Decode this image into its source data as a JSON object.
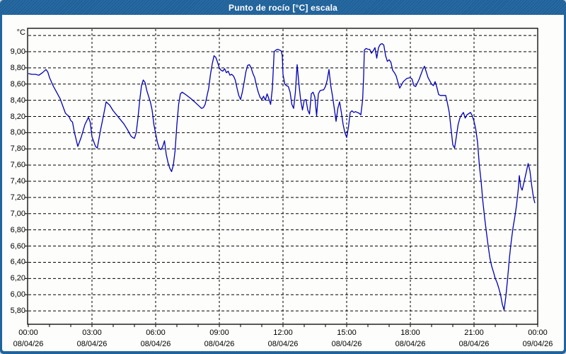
{
  "window": {
    "title": "Punto de rocío [°C] escala",
    "titlebar_color": "#1f649e",
    "border_color": "#1f649e",
    "plot_background": "#fdfdfb"
  },
  "chart_data": {
    "type": "line",
    "title": "Punto de rocío [°C] escala",
    "series_name": "Punto de rocío",
    "unit_label": "°C",
    "line_color": "#0000b8",
    "grid": "dashed-black",
    "legend": "none",
    "y_axis": {
      "tick_labels": [
        "9,00",
        "8,80",
        "8,60",
        "8,40",
        "8,20",
        "8,00",
        "7,80",
        "7,60",
        "7,40",
        "7,20",
        "7,00",
        "6,80",
        "6,60",
        "6,40",
        "6,20",
        "6,00",
        "5,80"
      ],
      "tick_values": [
        9.0,
        8.8,
        8.6,
        8.4,
        8.2,
        8.0,
        7.8,
        7.6,
        7.4,
        7.2,
        7.0,
        6.8,
        6.6,
        6.4,
        6.2,
        6.0,
        5.8
      ],
      "unlabeled_top_gridline": 9.2,
      "gridline_step": 0.2,
      "range_shown": [
        5.64,
        9.29
      ]
    },
    "x_axis": {
      "span_hours": 24,
      "major_tick_every_hours": 3,
      "minor_tick_every_hours": 1,
      "ticks": [
        {
          "time": "00:00",
          "date": "08/04/26"
        },
        {
          "time": "03:00",
          "date": "08/04/26"
        },
        {
          "time": "06:00",
          "date": "08/04/26"
        },
        {
          "time": "09:00",
          "date": "08/04/26"
        },
        {
          "time": "12:00",
          "date": "08/04/26"
        },
        {
          "time": "15:00",
          "date": "08/04/26"
        },
        {
          "time": "18:00",
          "date": "08/04/26"
        },
        {
          "time": "21:00",
          "date": "08/04/26"
        },
        {
          "time": "00:00",
          "date": "09/04/26"
        }
      ]
    },
    "points_format": [
      "minutes_from_00:00",
      "dew_point_C"
    ],
    "points": [
      [
        0,
        8.73
      ],
      [
        10,
        8.72
      ],
      [
        20,
        8.72
      ],
      [
        30,
        8.71
      ],
      [
        40,
        8.74
      ],
      [
        50,
        8.78
      ],
      [
        55,
        8.75
      ],
      [
        60,
        8.68
      ],
      [
        70,
        8.58
      ],
      [
        80,
        8.5
      ],
      [
        90,
        8.42
      ],
      [
        100,
        8.3
      ],
      [
        105,
        8.24
      ],
      [
        110,
        8.22
      ],
      [
        115,
        8.2
      ],
      [
        120,
        8.15
      ],
      [
        125,
        8.13
      ],
      [
        130,
        8.01
      ],
      [
        135,
        7.92
      ],
      [
        140,
        7.83
      ],
      [
        150,
        7.95
      ],
      [
        160,
        8.1
      ],
      [
        170,
        8.19
      ],
      [
        175,
        8.13
      ],
      [
        180,
        7.95
      ],
      [
        190,
        7.83
      ],
      [
        195,
        7.81
      ],
      [
        205,
        8.05
      ],
      [
        212,
        8.2
      ],
      [
        220,
        8.38
      ],
      [
        230,
        8.34
      ],
      [
        240,
        8.27
      ],
      [
        255,
        8.19
      ],
      [
        270,
        8.11
      ],
      [
        280,
        8.04
      ],
      [
        290,
        7.96
      ],
      [
        295,
        7.94
      ],
      [
        300,
        7.93
      ],
      [
        305,
        8.0
      ],
      [
        310,
        8.18
      ],
      [
        315,
        8.4
      ],
      [
        320,
        8.58
      ],
      [
        325,
        8.65
      ],
      [
        330,
        8.62
      ],
      [
        335,
        8.52
      ],
      [
        345,
        8.38
      ],
      [
        350,
        8.28
      ],
      [
        355,
        8.1
      ],
      [
        360,
        7.99
      ],
      [
        365,
        7.88
      ],
      [
        370,
        7.81
      ],
      [
        375,
        7.79
      ],
      [
        380,
        7.83
      ],
      [
        385,
        7.9
      ],
      [
        390,
        7.73
      ],
      [
        395,
        7.63
      ],
      [
        400,
        7.56
      ],
      [
        405,
        7.52
      ],
      [
        410,
        7.6
      ],
      [
        415,
        7.78
      ],
      [
        420,
        8.1
      ],
      [
        425,
        8.35
      ],
      [
        430,
        8.48
      ],
      [
        435,
        8.5
      ],
      [
        445,
        8.47
      ],
      [
        460,
        8.42
      ],
      [
        475,
        8.36
      ],
      [
        485,
        8.32
      ],
      [
        490,
        8.3
      ],
      [
        495,
        8.31
      ],
      [
        500,
        8.35
      ],
      [
        505,
        8.45
      ],
      [
        510,
        8.55
      ],
      [
        515,
        8.72
      ],
      [
        520,
        8.85
      ],
      [
        525,
        8.95
      ],
      [
        530,
        8.93
      ],
      [
        535,
        8.87
      ],
      [
        540,
        8.8
      ],
      [
        545,
        8.77
      ],
      [
        550,
        8.76
      ],
      [
        555,
        8.79
      ],
      [
        560,
        8.74
      ],
      [
        565,
        8.76
      ],
      [
        570,
        8.71
      ],
      [
        575,
        8.72
      ],
      [
        580,
        8.7
      ],
      [
        585,
        8.65
      ],
      [
        590,
        8.55
      ],
      [
        595,
        8.46
      ],
      [
        600,
        8.41
      ],
      [
        605,
        8.5
      ],
      [
        610,
        8.62
      ],
      [
        615,
        8.75
      ],
      [
        620,
        8.83
      ],
      [
        625,
        8.84
      ],
      [
        630,
        8.8
      ],
      [
        635,
        8.73
      ],
      [
        640,
        8.68
      ],
      [
        645,
        8.58
      ],
      [
        650,
        8.5
      ],
      [
        655,
        8.44
      ],
      [
        660,
        8.41
      ],
      [
        665,
        8.45
      ],
      [
        670,
        8.4
      ],
      [
        675,
        8.48
      ],
      [
        680,
        8.42
      ],
      [
        685,
        8.35
      ],
      [
        690,
        8.55
      ],
      [
        695,
        9.0
      ],
      [
        700,
        9.02
      ],
      [
        705,
        9.03
      ],
      [
        710,
        9.02
      ],
      [
        715,
        9.01
      ],
      [
        718,
        8.95
      ],
      [
        720,
        8.72
      ],
      [
        725,
        8.6
      ],
      [
        730,
        8.58
      ],
      [
        735,
        8.57
      ],
      [
        740,
        8.5
      ],
      [
        745,
        8.35
      ],
      [
        750,
        8.3
      ],
      [
        755,
        8.5
      ],
      [
        760,
        8.84
      ],
      [
        765,
        8.6
      ],
      [
        770,
        8.4
      ],
      [
        775,
        8.28
      ],
      [
        780,
        8.4
      ],
      [
        785,
        8.41
      ],
      [
        790,
        8.28
      ],
      [
        795,
        8.23
      ],
      [
        800,
        8.48
      ],
      [
        805,
        8.5
      ],
      [
        810,
        8.44
      ],
      [
        815,
        8.21
      ],
      [
        820,
        8.48
      ],
      [
        825,
        8.52
      ],
      [
        835,
        8.53
      ],
      [
        840,
        8.57
      ],
      [
        845,
        8.65
      ],
      [
        850,
        8.78
      ],
      [
        855,
        8.58
      ],
      [
        860,
        8.45
      ],
      [
        865,
        8.3
      ],
      [
        870,
        8.14
      ],
      [
        875,
        8.3
      ],
      [
        880,
        8.38
      ],
      [
        885,
        8.25
      ],
      [
        890,
        8.1
      ],
      [
        895,
        8.0
      ],
      [
        900,
        7.94
      ],
      [
        905,
        8.07
      ],
      [
        910,
        8.25
      ],
      [
        915,
        8.27
      ],
      [
        920,
        8.25
      ],
      [
        925,
        8.26
      ],
      [
        930,
        8.25
      ],
      [
        935,
        8.24
      ],
      [
        940,
        8.22
      ],
      [
        945,
        8.4
      ],
      [
        948,
        8.7
      ],
      [
        950,
        9.02
      ],
      [
        955,
        9.04
      ],
      [
        960,
        9.03
      ],
      [
        965,
        9.03
      ],
      [
        970,
        8.98
      ],
      [
        975,
        9.01
      ],
      [
        980,
        9.05
      ],
      [
        985,
        8.92
      ],
      [
        990,
        9.05
      ],
      [
        995,
        9.09
      ],
      [
        1000,
        9.1
      ],
      [
        1005,
        9.08
      ],
      [
        1010,
        8.95
      ],
      [
        1015,
        8.88
      ],
      [
        1020,
        8.9
      ],
      [
        1025,
        8.87
      ],
      [
        1030,
        8.77
      ],
      [
        1035,
        8.74
      ],
      [
        1040,
        8.7
      ],
      [
        1045,
        8.62
      ],
      [
        1050,
        8.55
      ],
      [
        1060,
        8.63
      ],
      [
        1070,
        8.67
      ],
      [
        1080,
        8.68
      ],
      [
        1085,
        8.66
      ],
      [
        1090,
        8.58
      ],
      [
        1095,
        8.57
      ],
      [
        1105,
        8.66
      ],
      [
        1115,
        8.78
      ],
      [
        1120,
        8.82
      ],
      [
        1125,
        8.75
      ],
      [
        1130,
        8.68
      ],
      [
        1140,
        8.6
      ],
      [
        1145,
        8.58
      ],
      [
        1150,
        8.63
      ],
      [
        1155,
        8.56
      ],
      [
        1160,
        8.47
      ],
      [
        1165,
        8.46
      ],
      [
        1180,
        8.46
      ],
      [
        1185,
        8.36
      ],
      [
        1190,
        8.25
      ],
      [
        1195,
        8.05
      ],
      [
        1200,
        7.85
      ],
      [
        1205,
        7.81
      ],
      [
        1210,
        7.95
      ],
      [
        1215,
        8.1
      ],
      [
        1220,
        8.18
      ],
      [
        1225,
        8.22
      ],
      [
        1230,
        8.25
      ],
      [
        1235,
        8.18
      ],
      [
        1240,
        8.22
      ],
      [
        1250,
        8.25
      ],
      [
        1255,
        8.21
      ],
      [
        1260,
        8.14
      ],
      [
        1265,
        8.04
      ],
      [
        1270,
        7.88
      ],
      [
        1275,
        7.6
      ],
      [
        1280,
        7.4
      ],
      [
        1285,
        7.15
      ],
      [
        1290,
        6.95
      ],
      [
        1295,
        6.77
      ],
      [
        1300,
        6.6
      ],
      [
        1305,
        6.45
      ],
      [
        1310,
        6.35
      ],
      [
        1315,
        6.28
      ],
      [
        1320,
        6.2
      ],
      [
        1325,
        6.15
      ],
      [
        1330,
        6.08
      ],
      [
        1335,
        6.0
      ],
      [
        1340,
        5.88
      ],
      [
        1345,
        5.81
      ],
      [
        1350,
        5.98
      ],
      [
        1355,
        6.2
      ],
      [
        1360,
        6.45
      ],
      [
        1365,
        6.65
      ],
      [
        1370,
        6.82
      ],
      [
        1375,
        6.95
      ],
      [
        1380,
        7.1
      ],
      [
        1385,
        7.3
      ],
      [
        1388,
        7.47
      ],
      [
        1392,
        7.33
      ],
      [
        1396,
        7.29
      ],
      [
        1402,
        7.4
      ],
      [
        1408,
        7.52
      ],
      [
        1413,
        7.62
      ],
      [
        1418,
        7.53
      ],
      [
        1423,
        7.35
      ],
      [
        1428,
        7.2
      ],
      [
        1432,
        7.13
      ]
    ]
  }
}
